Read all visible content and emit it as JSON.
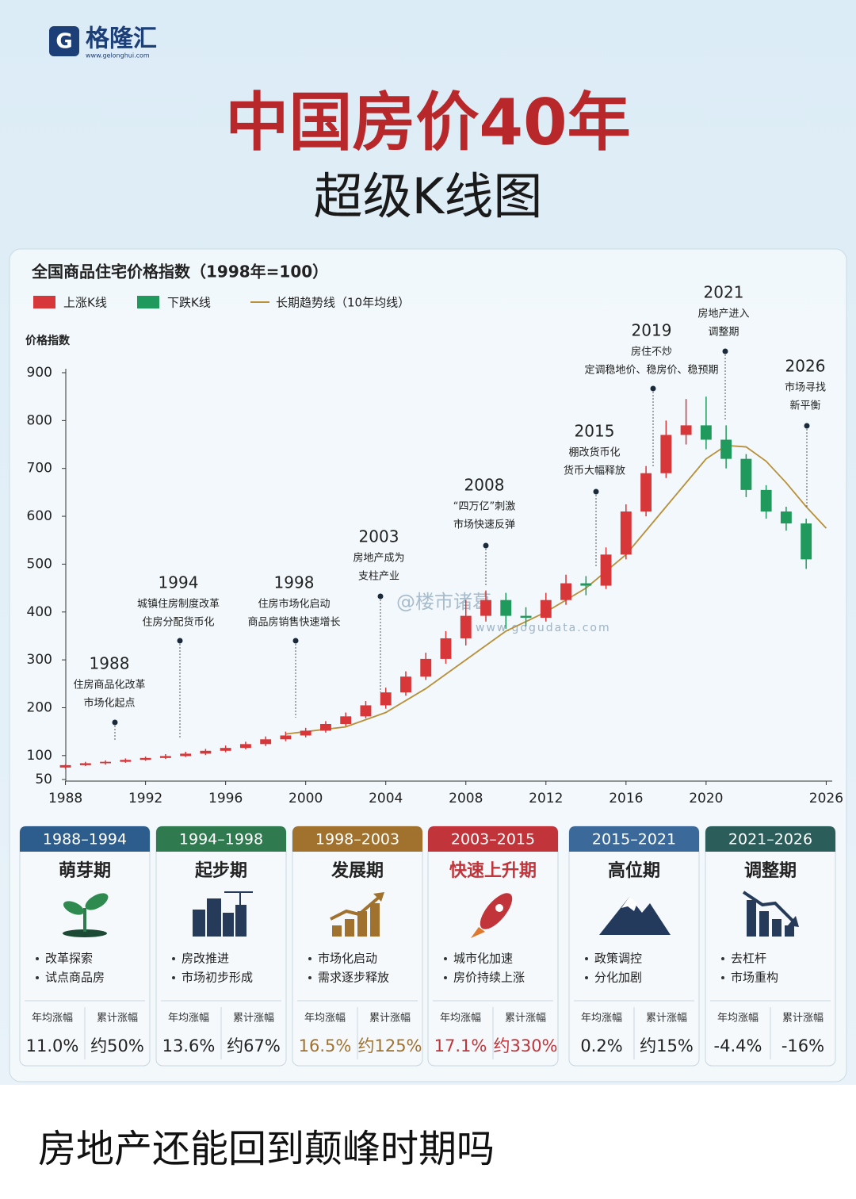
{
  "header": {
    "logo": "格隆汇",
    "logo_url": "www.gelonghui.com",
    "title": "中国房价40年",
    "subtitle": "超级K线图"
  },
  "chart_data": {
    "type": "candlestick",
    "title": "全国商品住宅价格指数（1998年=100）",
    "y_label": "价格指数",
    "x": [
      1988,
      1989,
      1990,
      1991,
      1992,
      1993,
      1994,
      1995,
      1996,
      1997,
      1998,
      1999,
      2000,
      2001,
      2002,
      2003,
      2004,
      2005,
      2006,
      2007,
      2008,
      2009,
      2010,
      2011,
      2012,
      2013,
      2014,
      2015,
      2016,
      2017,
      2018,
      2019,
      2020,
      2021,
      2022,
      2023,
      2024,
      2025
    ],
    "open": [
      75,
      80,
      84,
      87,
      91,
      95,
      99,
      104,
      110,
      116,
      124,
      134,
      142,
      152,
      166,
      182,
      205,
      232,
      265,
      302,
      345,
      392,
      425,
      392,
      388,
      425,
      460,
      455,
      520,
      610,
      690,
      770,
      790,
      760,
      720,
      655,
      610,
      585
    ],
    "high": [
      82,
      87,
      90,
      94,
      98,
      103,
      108,
      114,
      121,
      129,
      140,
      150,
      158,
      172,
      190,
      214,
      242,
      276,
      315,
      360,
      425,
      445,
      440,
      410,
      440,
      478,
      475,
      535,
      625,
      705,
      800,
      845,
      850,
      790,
      730,
      665,
      620,
      595
    ],
    "low": [
      72,
      78,
      81,
      85,
      89,
      93,
      97,
      101,
      107,
      113,
      120,
      130,
      138,
      148,
      162,
      178,
      198,
      225,
      258,
      292,
      330,
      380,
      365,
      370,
      380,
      415,
      435,
      448,
      510,
      600,
      680,
      750,
      740,
      700,
      640,
      595,
      570,
      490
    ],
    "close": [
      80,
      84,
      87,
      91,
      95,
      99,
      104,
      110,
      116,
      124,
      134,
      142,
      152,
      166,
      182,
      205,
      232,
      265,
      302,
      345,
      392,
      425,
      392,
      388,
      425,
      460,
      455,
      520,
      610,
      690,
      770,
      790,
      760,
      720,
      655,
      610,
      585,
      510
    ],
    "up_name": "上涨K线",
    "up_color": "#d8373a",
    "down_name": "下跌K线",
    "down_color": "#1f9a5c",
    "trend": {
      "name": "长期趋势线（10年均线）",
      "color": "#b89038",
      "x": [
        1999,
        2002,
        2004,
        2006,
        2008,
        2010,
        2012,
        2014,
        2016,
        2018,
        2020,
        2021,
        2022,
        2023,
        2024,
        2025,
        2026
      ],
      "values": [
        145,
        160,
        190,
        240,
        300,
        360,
        400,
        450,
        520,
        620,
        720,
        748,
        745,
        715,
        670,
        620,
        575
      ]
    },
    "xlim": [
      1987.7,
      2026.3
    ],
    "xticks": [
      1988,
      1992,
      1996,
      2000,
      2004,
      2008,
      2012,
      2016,
      2020,
      2026
    ],
    "ylim": [
      50,
      900
    ],
    "yticks": [
      50,
      100,
      200,
      300,
      400,
      500,
      600,
      700,
      800,
      900
    ],
    "annotations": [
      {
        "label": "1988",
        "lines": [
          "住房商品化改革",
          "市场化起点"
        ]
      },
      {
        "label": "1994",
        "lines": [
          "城镇住房制度改革",
          "住房分配货币化"
        ]
      },
      {
        "label": "1998",
        "lines": [
          "住房市场化启动",
          "商品房销售快速增长"
        ]
      },
      {
        "label": "2003",
        "lines": [
          "房地产成为",
          "支柱产业"
        ]
      },
      {
        "label": "2008",
        "lines": [
          "“四万亿”刺激",
          "市场快速反弹"
        ]
      },
      {
        "label": "2015",
        "lines": [
          "棚改货币化",
          "货币大幅释放"
        ]
      },
      {
        "label": "2019",
        "lines": [
          "房住不炒",
          "定调稳地价、稳房价、稳预期"
        ]
      },
      {
        "label": "2021",
        "lines": [
          "房地产进入",
          "调整期"
        ]
      },
      {
        "label": "2026",
        "lines": [
          "市场寻找",
          "新平衡"
        ]
      }
    ],
    "watermarks": [
      "@楼市诸葛",
      "www.gogudata.com"
    ]
  },
  "cards": [
    {
      "range": "1988–1994",
      "title": "萌芽期",
      "bullets": [
        "改革探索",
        "试点商品房"
      ],
      "stat_labels": [
        "年均涨幅",
        "累计涨幅"
      ],
      "stats": [
        "11.0%",
        "约50%"
      ],
      "color": "#2d5d8c",
      "value_color": "#222222"
    },
    {
      "range": "1994–1998",
      "title": "起步期",
      "bullets": [
        "房改推进",
        "市场初步形成"
      ],
      "stat_labels": [
        "年均涨幅",
        "累计涨幅"
      ],
      "stats": [
        "13.6%",
        "约67%"
      ],
      "color": "#2f7a4f",
      "value_color": "#222222"
    },
    {
      "range": "1998–2003",
      "title": "发展期",
      "bullets": [
        "市场化启动",
        "需求逐步释放"
      ],
      "stat_labels": [
        "年均涨幅",
        "累计涨幅"
      ],
      "stats": [
        "16.5%",
        "约125%"
      ],
      "color": "#a0722e",
      "value_color": "#a0722e"
    },
    {
      "range": "2003–2015",
      "title": "快速上升期",
      "bullets": [
        "城市化加速",
        "房价持续上涨"
      ],
      "stat_labels": [
        "年均涨幅",
        "累计涨幅"
      ],
      "stats": [
        "17.1%",
        "约330%"
      ],
      "color": "#c0343a",
      "value_color": "#c0343a"
    },
    {
      "range": "2015–2021",
      "title": "高位期",
      "bullets": [
        "政策调控",
        "分化加剧"
      ],
      "stat_labels": [
        "年均涨幅",
        "累计涨幅"
      ],
      "stats": [
        "0.2%",
        "约15%"
      ],
      "color": "#3b6a9a",
      "value_color": "#222222"
    },
    {
      "range": "2021–2026",
      "title": "调整期",
      "bullets": [
        "去杠杆",
        "市场重构"
      ],
      "stat_labels": [
        "年均涨幅",
        "累计涨幅"
      ],
      "stats": [
        "-4.4%",
        "-16%"
      ],
      "color": "#2b5e5a",
      "value_color": "#222222"
    }
  ],
  "caption": "房地产还能回到颠峰时期吗"
}
